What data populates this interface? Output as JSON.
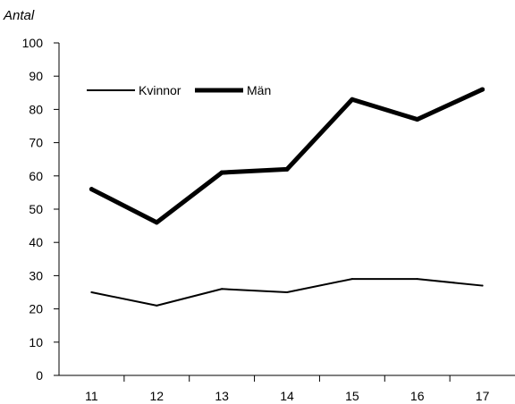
{
  "chart_data": {
    "type": "line",
    "ylabel": "Antal",
    "xlabel": "",
    "x": [
      "11",
      "12",
      "13",
      "14",
      "15",
      "16",
      "17"
    ],
    "ylim": [
      0,
      100
    ],
    "yticks": [
      0,
      10,
      20,
      30,
      40,
      50,
      60,
      70,
      80,
      90,
      100
    ],
    "grid": false,
    "legend": "top-left",
    "series": [
      {
        "name": "Kvinnor",
        "values": [
          25,
          21,
          26,
          25,
          29,
          29,
          27
        ],
        "color": "#000000",
        "style": "thin"
      },
      {
        "name": "Män",
        "values": [
          56,
          46,
          61,
          62,
          83,
          77,
          86
        ],
        "color": "#000000",
        "style": "thick"
      }
    ]
  }
}
